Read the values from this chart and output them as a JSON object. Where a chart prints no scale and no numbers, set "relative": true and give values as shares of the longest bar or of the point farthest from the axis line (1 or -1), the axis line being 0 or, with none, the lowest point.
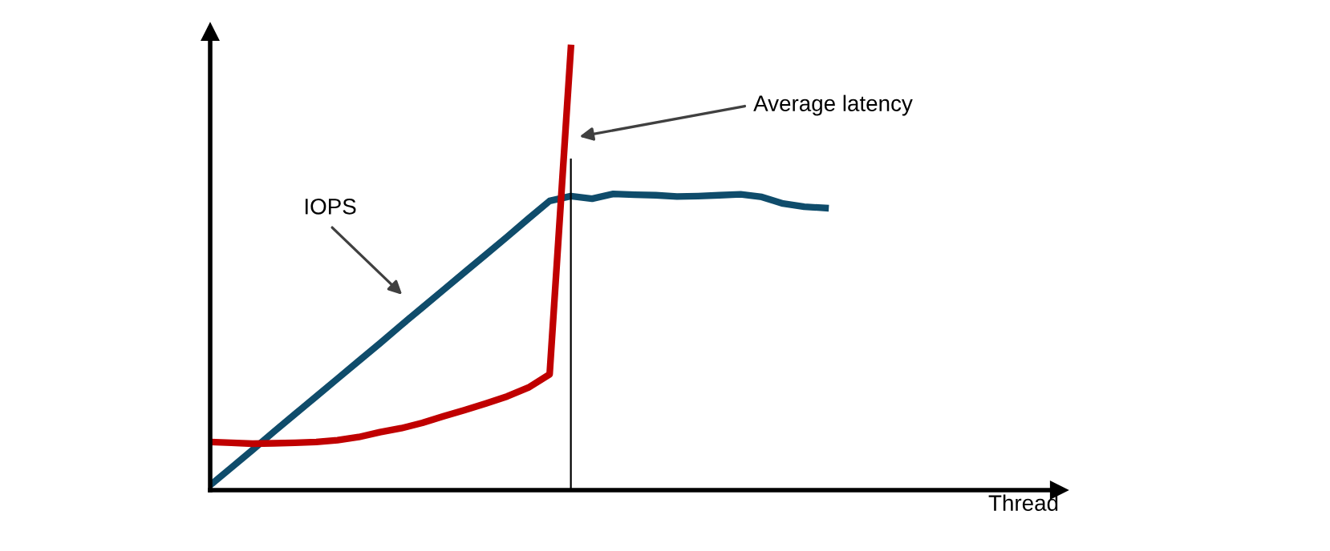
{
  "chart_data": {
    "type": "line",
    "relative": true,
    "xlabel": "Thread",
    "tick_labels": false,
    "grid": false,
    "legend": false,
    "marker": "none",
    "line_style": "solid",
    "categories": [
      null,
      null,
      null,
      null,
      null,
      null,
      null,
      null,
      null,
      null,
      null,
      null,
      null,
      null,
      null,
      null,
      null,
      null,
      null,
      null,
      null,
      null,
      null,
      null,
      null,
      null,
      null,
      null,
      null,
      null,
      null,
      null,
      null,
      null,
      null,
      null,
      null,
      null,
      null,
      null,
      null
    ],
    "series": [
      {
        "color": "#0f4c6b",
        "values": [
          0.011,
          0.051,
          0.091,
          0.132,
          0.172,
          0.212,
          0.252,
          0.292,
          0.332,
          0.373,
          0.413,
          0.453,
          0.493,
          0.533,
          0.573,
          0.614,
          0.654,
          0.665,
          0.659,
          0.67,
          0.668,
          0.667,
          0.664,
          0.665,
          0.667,
          0.669,
          0.663,
          0.648,
          0.641,
          0.638,
          null,
          null,
          null,
          null,
          null,
          null,
          null,
          null,
          null,
          null,
          null
        ]
      },
      {
        "color": "#c00000",
        "values": [
          0.109,
          0.107,
          0.105,
          0.106,
          0.107,
          0.109,
          0.113,
          0.12,
          0.131,
          0.14,
          0.152,
          0.167,
          0.181,
          0.196,
          0.212,
          0.232,
          0.262,
          1.0,
          null,
          null,
          null,
          null,
          null,
          null,
          null,
          null,
          null,
          null,
          null,
          null,
          null,
          null,
          null,
          null,
          null,
          null,
          null,
          null,
          null,
          null,
          null
        ]
      }
    ],
    "annotations": [
      "IOPS",
      "Average latency"
    ]
  }
}
